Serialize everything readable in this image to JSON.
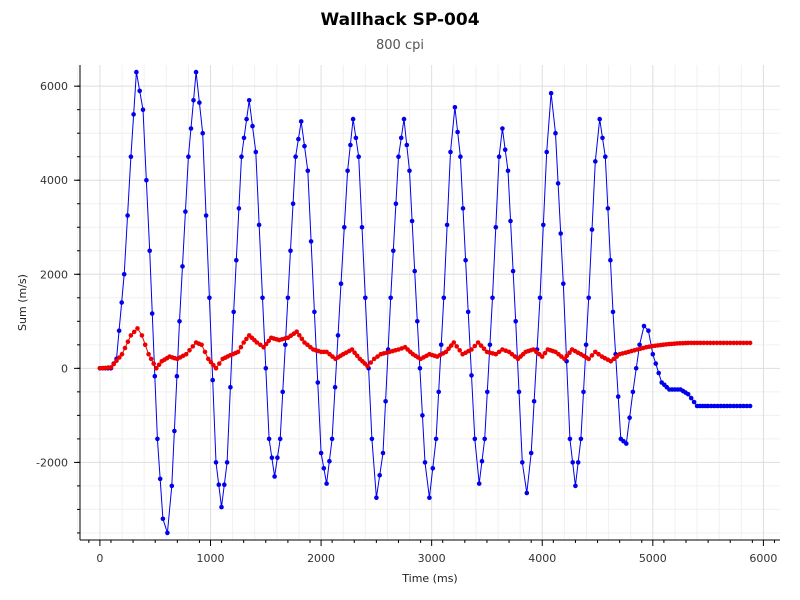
{
  "chart_data": {
    "type": "line",
    "title": "Wallhack SP-004",
    "subtitle": "800 cpi",
    "xlabel": "Time (ms)",
    "ylabel": "Sum (m/s)",
    "xlim": [
      -180,
      6150
    ],
    "ylim": [
      -3650,
      6450
    ],
    "xticks": [
      0,
      1000,
      2000,
      3000,
      4000,
      5000,
      6000
    ],
    "yticks": [
      -2000,
      0,
      2000,
      4000,
      6000
    ],
    "grid": true,
    "legend": "none",
    "series": [
      {
        "color": "#0000ee",
        "points": [
          [
            0,
            0
          ],
          [
            100,
            0
          ],
          [
            150,
            200
          ],
          [
            220,
            2000
          ],
          [
            280,
            4500
          ],
          [
            330,
            6300
          ],
          [
            390,
            5500
          ],
          [
            450,
            2500
          ],
          [
            520,
            -1500
          ],
          [
            570,
            -3200
          ],
          [
            610,
            -3500
          ],
          [
            650,
            -2500
          ],
          [
            720,
            1000
          ],
          [
            800,
            4500
          ],
          [
            870,
            6300
          ],
          [
            930,
            5000
          ],
          [
            990,
            1500
          ],
          [
            1050,
            -2000
          ],
          [
            1100,
            -2950
          ],
          [
            1150,
            -2000
          ],
          [
            1210,
            1200
          ],
          [
            1280,
            4500
          ],
          [
            1350,
            5700
          ],
          [
            1410,
            4600
          ],
          [
            1470,
            1500
          ],
          [
            1530,
            -1500
          ],
          [
            1580,
            -2300
          ],
          [
            1630,
            -1500
          ],
          [
            1700,
            1500
          ],
          [
            1770,
            4500
          ],
          [
            1820,
            5250
          ],
          [
            1880,
            4200
          ],
          [
            1940,
            1200
          ],
          [
            2000,
            -1800
          ],
          [
            2050,
            -2450
          ],
          [
            2100,
            -1500
          ],
          [
            2180,
            1800
          ],
          [
            2240,
            4200
          ],
          [
            2290,
            5300
          ],
          [
            2340,
            4500
          ],
          [
            2400,
            1500
          ],
          [
            2460,
            -1500
          ],
          [
            2500,
            -2750
          ],
          [
            2560,
            -1800
          ],
          [
            2630,
            1500
          ],
          [
            2700,
            4500
          ],
          [
            2750,
            5300
          ],
          [
            2800,
            4200
          ],
          [
            2870,
            1000
          ],
          [
            2940,
            -2000
          ],
          [
            2980,
            -2750
          ],
          [
            3040,
            -1500
          ],
          [
            3110,
            1500
          ],
          [
            3170,
            4600
          ],
          [
            3210,
            5550
          ],
          [
            3260,
            4500
          ],
          [
            3330,
            1200
          ],
          [
            3390,
            -1500
          ],
          [
            3430,
            -2450
          ],
          [
            3480,
            -1500
          ],
          [
            3550,
            1500
          ],
          [
            3610,
            4500
          ],
          [
            3640,
            5100
          ],
          [
            3690,
            4200
          ],
          [
            3760,
            1000
          ],
          [
            3820,
            -2000
          ],
          [
            3860,
            -2650
          ],
          [
            3900,
            -1800
          ],
          [
            3980,
            1500
          ],
          [
            4040,
            4600
          ],
          [
            4080,
            5850
          ],
          [
            4120,
            5000
          ],
          [
            4190,
            1800
          ],
          [
            4250,
            -1500
          ],
          [
            4300,
            -2500
          ],
          [
            4350,
            -1500
          ],
          [
            4420,
            1500
          ],
          [
            4480,
            4400
          ],
          [
            4520,
            5300
          ],
          [
            4570,
            4500
          ],
          [
            4640,
            1200
          ],
          [
            4710,
            -1500
          ],
          [
            4760,
            -1600
          ],
          [
            4820,
            -500
          ],
          [
            4880,
            500
          ],
          [
            4920,
            900
          ],
          [
            4960,
            800
          ],
          [
            5000,
            300
          ],
          [
            5080,
            -300
          ],
          [
            5150,
            -450
          ],
          [
            5250,
            -450
          ],
          [
            5320,
            -550
          ],
          [
            5400,
            -800
          ],
          [
            5500,
            -800
          ],
          [
            5700,
            -800
          ],
          [
            5880,
            -800
          ]
        ]
      },
      {
        "color": "#ee0000",
        "points": [
          [
            0,
            0
          ],
          [
            100,
            20
          ],
          [
            200,
            300
          ],
          [
            280,
            700
          ],
          [
            340,
            850
          ],
          [
            380,
            700
          ],
          [
            440,
            300
          ],
          [
            510,
            0
          ],
          [
            560,
            150
          ],
          [
            630,
            250
          ],
          [
            700,
            200
          ],
          [
            780,
            300
          ],
          [
            870,
            550
          ],
          [
            920,
            500
          ],
          [
            980,
            200
          ],
          [
            1050,
            0
          ],
          [
            1110,
            200
          ],
          [
            1180,
            280
          ],
          [
            1250,
            350
          ],
          [
            1300,
            550
          ],
          [
            1350,
            700
          ],
          [
            1420,
            550
          ],
          [
            1480,
            450
          ],
          [
            1550,
            650
          ],
          [
            1620,
            600
          ],
          [
            1700,
            650
          ],
          [
            1780,
            780
          ],
          [
            1850,
            550
          ],
          [
            1930,
            400
          ],
          [
            2000,
            350
          ],
          [
            2050,
            350
          ],
          [
            2130,
            200
          ],
          [
            2200,
            300
          ],
          [
            2280,
            400
          ],
          [
            2350,
            200
          ],
          [
            2420,
            50
          ],
          [
            2480,
            200
          ],
          [
            2540,
            300
          ],
          [
            2620,
            350
          ],
          [
            2700,
            400
          ],
          [
            2760,
            450
          ],
          [
            2830,
            300
          ],
          [
            2900,
            200
          ],
          [
            2980,
            300
          ],
          [
            3050,
            250
          ],
          [
            3130,
            350
          ],
          [
            3200,
            550
          ],
          [
            3280,
            300
          ],
          [
            3360,
            400
          ],
          [
            3420,
            550
          ],
          [
            3500,
            350
          ],
          [
            3580,
            300
          ],
          [
            3640,
            400
          ],
          [
            3700,
            350
          ],
          [
            3780,
            200
          ],
          [
            3850,
            350
          ],
          [
            3920,
            400
          ],
          [
            4000,
            250
          ],
          [
            4050,
            400
          ],
          [
            4120,
            350
          ],
          [
            4200,
            200
          ],
          [
            4270,
            400
          ],
          [
            4350,
            300
          ],
          [
            4420,
            200
          ],
          [
            4480,
            350
          ],
          [
            4540,
            250
          ],
          [
            4620,
            150
          ],
          [
            4700,
            300
          ],
          [
            4780,
            350
          ],
          [
            4860,
            400
          ],
          [
            4940,
            450
          ],
          [
            5020,
            480
          ],
          [
            5120,
            510
          ],
          [
            5220,
            530
          ],
          [
            5320,
            540
          ],
          [
            5430,
            540
          ],
          [
            5550,
            540
          ],
          [
            5700,
            540
          ],
          [
            5880,
            540
          ]
        ]
      }
    ]
  }
}
